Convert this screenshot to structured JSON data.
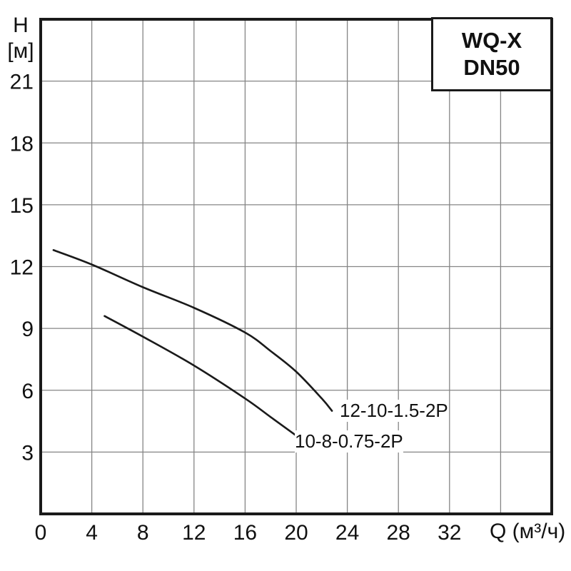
{
  "page": {
    "background": "#ffffff"
  },
  "legend_box": {
    "line1": "WQ-X",
    "line2": "DN50"
  },
  "chart_data": {
    "type": "line",
    "title": "WQ-X DN50 pump performance curves (H vs Q)",
    "y_axis_name": "H",
    "y_axis_unit": "[м]",
    "x_axis_label": "Q (м³/ч)",
    "xlabel": "Q (м³/ч)",
    "ylabel": "H [м]",
    "xlim": [
      0,
      40
    ],
    "ylim": [
      0,
      24
    ],
    "x_ticks": [
      0,
      4,
      8,
      12,
      16,
      20,
      24,
      28,
      32
    ],
    "y_ticks": [
      3,
      6,
      9,
      12,
      15,
      18,
      21
    ],
    "x_grid_step": 4,
    "y_grid_step": 3,
    "grid": true,
    "legend_position": "top-right",
    "series": [
      {
        "name": "12-10-1.5-2P",
        "x": [
          1,
          4,
          8,
          12,
          16,
          18,
          20,
          22,
          22.8
        ],
        "y": [
          12.8,
          12.1,
          11.0,
          10.0,
          8.8,
          7.9,
          6.9,
          5.6,
          5.0
        ]
      },
      {
        "name": "10-8-0.75-2P",
        "x": [
          5,
          8,
          12,
          16,
          18,
          20
        ],
        "y": [
          9.6,
          8.6,
          7.2,
          5.6,
          4.7,
          3.8
        ]
      }
    ],
    "colors": {
      "curve": "#1a1a1a",
      "grid": "#858585",
      "border": "#1a1a1a",
      "text": "#111111"
    }
  }
}
